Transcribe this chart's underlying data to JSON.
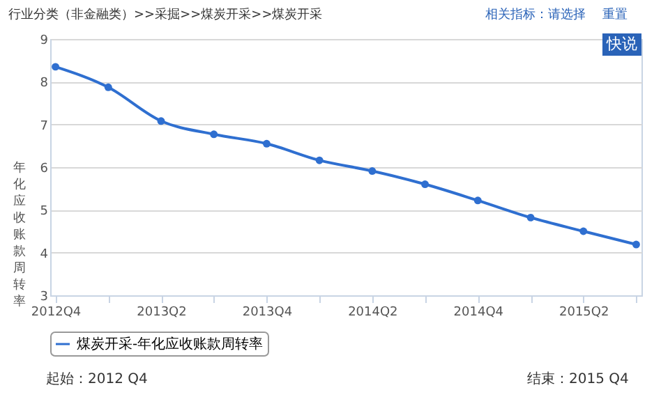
{
  "chart_data": {
    "type": "line",
    "title": "行业分类（非金融类）>>采掘>>煤炭开采>>煤炭开采",
    "ylabel": "年化应收账款周转率",
    "categories": [
      "2012Q4",
      null,
      "2013Q2",
      null,
      "2013Q4",
      null,
      "2014Q2",
      null,
      "2014Q4",
      null,
      "2015Q2",
      null
    ],
    "series": [
      {
        "name": "煤炭开采-年化应收账款周转率",
        "color": "#2f6fd0",
        "values": [
          8.35,
          7.87,
          7.08,
          6.77,
          6.55,
          6.16,
          5.91,
          5.6,
          5.22,
          4.82,
          4.5,
          4.19
        ]
      }
    ],
    "ylim": [
      3,
      9
    ],
    "yticks": [
      3,
      4,
      5,
      6,
      7,
      8,
      9
    ],
    "grid": "y",
    "legend": "bottom",
    "marker": "circle",
    "line_style": "solid",
    "annotations": [
      "相关指标：请选择",
      "重置",
      "快说",
      "起始：2012 Q4",
      "结束：2015 Q4"
    ]
  }
}
